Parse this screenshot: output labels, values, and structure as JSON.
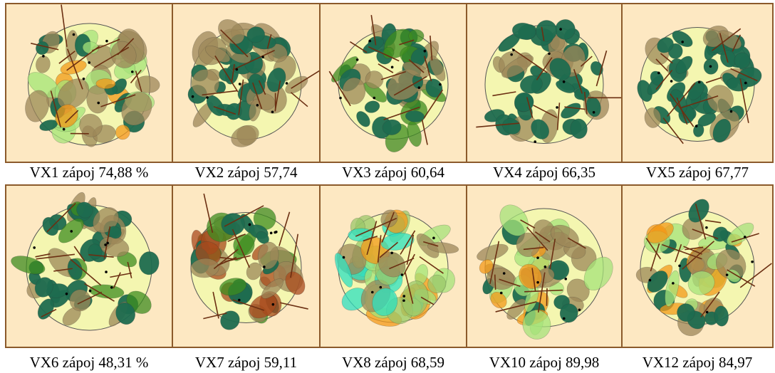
{
  "panels": [
    {
      "caption": "VX1 zápoj 74,88 %"
    },
    {
      "caption": "VX2 zápoj 57,74"
    },
    {
      "caption": "VX3 zápoj 60,64"
    },
    {
      "caption": "VX4 zápoj 66,35"
    },
    {
      "caption": "VX5 zápoj 67,77"
    },
    {
      "caption": "VX6 zápoj 48,31 %"
    },
    {
      "caption": "VX7 zápoj 59,11"
    },
    {
      "caption": "VX8 zápoj 68,59"
    },
    {
      "caption": "VX10 zápoj 89,98"
    },
    {
      "caption": "VX12 zápoj 84,97"
    }
  ]
}
